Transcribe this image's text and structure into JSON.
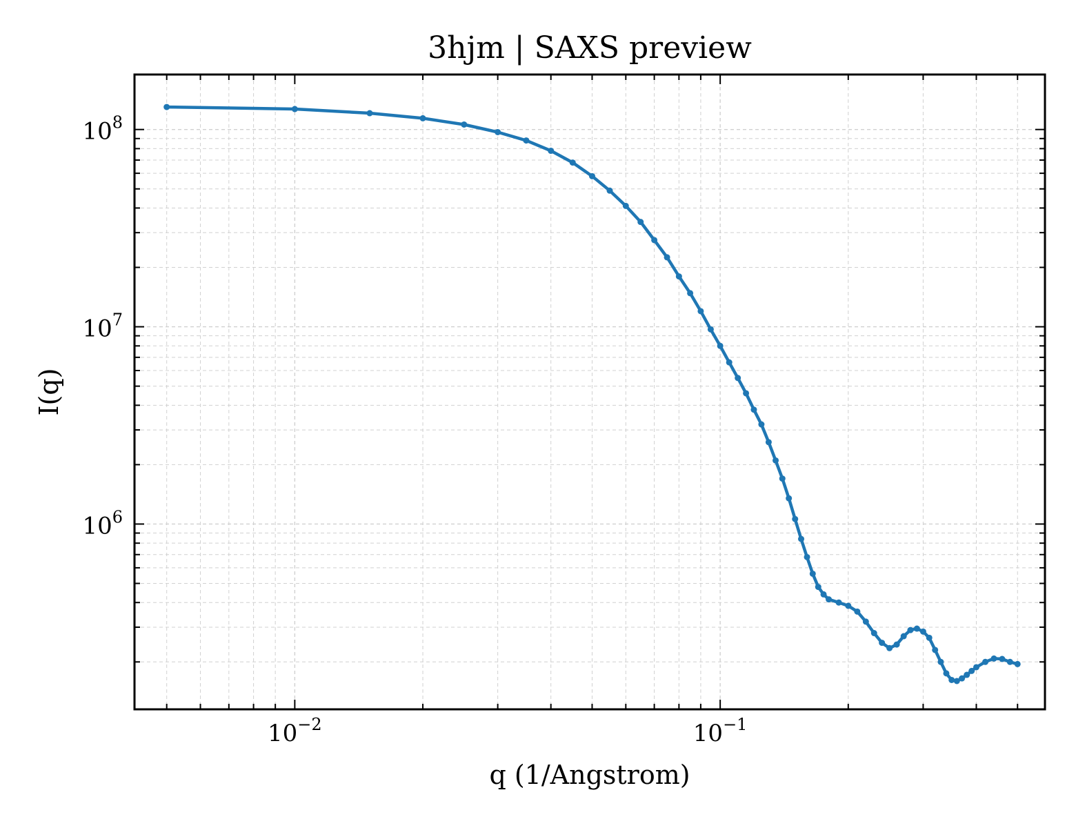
{
  "chart_data": {
    "type": "line",
    "title": "3hjm | SAXS preview",
    "xlabel": "q (1/Angstrom)",
    "ylabel": "I(q)",
    "xscale": "log",
    "yscale": "log",
    "xlim": [
      0.0042,
      0.58
    ],
    "ylim": [
      115000,
      190000000
    ],
    "grid": true,
    "legend": "none",
    "series_color": "#1f77b4",
    "x_ticks": [
      {
        "base": "10",
        "exp": "−2",
        "value": 0.01
      },
      {
        "base": "10",
        "exp": "−1",
        "value": 0.1
      }
    ],
    "y_ticks": [
      {
        "base": "10",
        "exp": "6",
        "value": 1000000
      },
      {
        "base": "10",
        "exp": "7",
        "value": 10000000
      },
      {
        "base": "10",
        "exp": "8",
        "value": 100000000
      }
    ],
    "series": [
      {
        "x": [
          0.005,
          0.01,
          0.015,
          0.02,
          0.025,
          0.03,
          0.035,
          0.04,
          0.045,
          0.05,
          0.055,
          0.06,
          0.065,
          0.07,
          0.075,
          0.08,
          0.085,
          0.09,
          0.095,
          0.1,
          0.105,
          0.11,
          0.115,
          0.12,
          0.125,
          0.13,
          0.135,
          0.14,
          0.145,
          0.15,
          0.155,
          0.16,
          0.165,
          0.17,
          0.175,
          0.18,
          0.19,
          0.2,
          0.21,
          0.22,
          0.23,
          0.24,
          0.25,
          0.26,
          0.27,
          0.28,
          0.29,
          0.3,
          0.31,
          0.32,
          0.33,
          0.34,
          0.35,
          0.36,
          0.37,
          0.38,
          0.39,
          0.4,
          0.42,
          0.44,
          0.46,
          0.48,
          0.5
        ],
        "y": [
          130000000,
          127000000,
          121000000,
          114000000,
          106000000,
          97000000,
          88000000,
          78000000,
          68000000,
          58000000,
          49000000,
          41000000,
          34000000,
          27500000,
          22500000,
          18000000,
          14800000,
          12000000,
          9700000,
          8000000,
          6600000,
          5500000,
          4600000,
          3800000,
          3200000,
          2600000,
          2100000,
          1700000,
          1350000,
          1060000,
          840000,
          680000,
          560000,
          480000,
          440000,
          415000,
          400000,
          385000,
          360000,
          320000,
          280000,
          250000,
          235000,
          245000,
          270000,
          290000,
          295000,
          285000,
          265000,
          230000,
          200000,
          175000,
          162000,
          160000,
          165000,
          172000,
          180000,
          188000,
          200000,
          208000,
          207000,
          200000,
          195000
        ]
      }
    ]
  }
}
